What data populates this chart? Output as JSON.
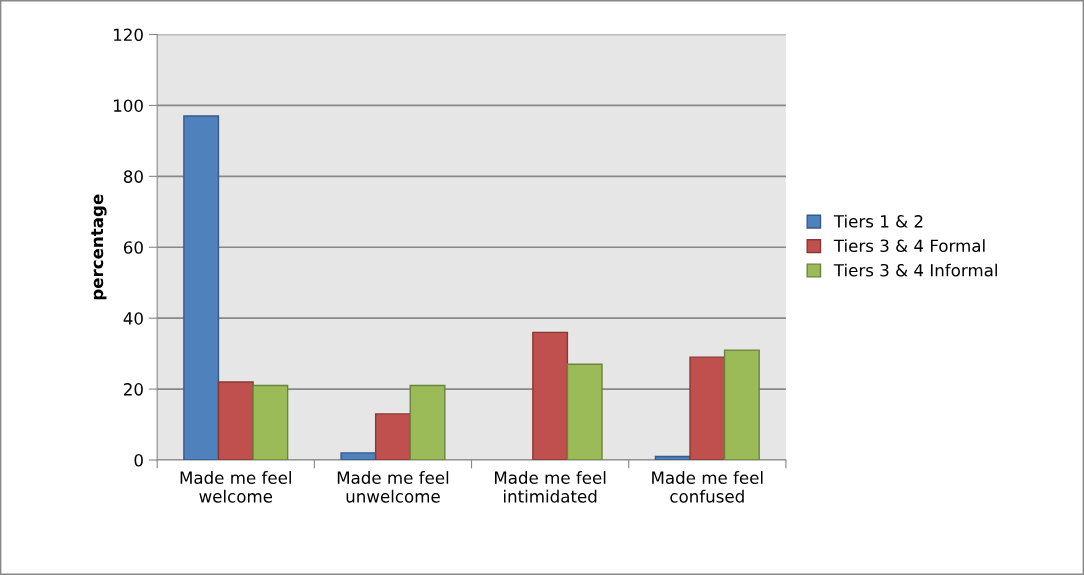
{
  "chart_data": {
    "type": "bar",
    "ylabel": "percentage",
    "categories": [
      "Made me feel\nwelcome",
      "Made me feel\nunwelcome",
      "Made me feel\nintimidated",
      "Made me feel\nconfused"
    ],
    "series": [
      {
        "name": "Tiers 1 & 2",
        "color": "#4f81bd",
        "values": [
          97,
          2,
          null,
          1
        ]
      },
      {
        "name": "Tiers 3 & 4 Formal",
        "color": "#c0504d",
        "values": [
          22,
          13,
          36,
          29
        ]
      },
      {
        "name": "Tiers 3 & 4 Informal",
        "color": "#9bbb59",
        "values": [
          21,
          21,
          27,
          31
        ]
      }
    ],
    "ylim": [
      0,
      120
    ],
    "yticks": [
      0,
      20,
      40,
      60,
      80,
      100,
      120
    ],
    "grid": "y",
    "legend": "right"
  }
}
